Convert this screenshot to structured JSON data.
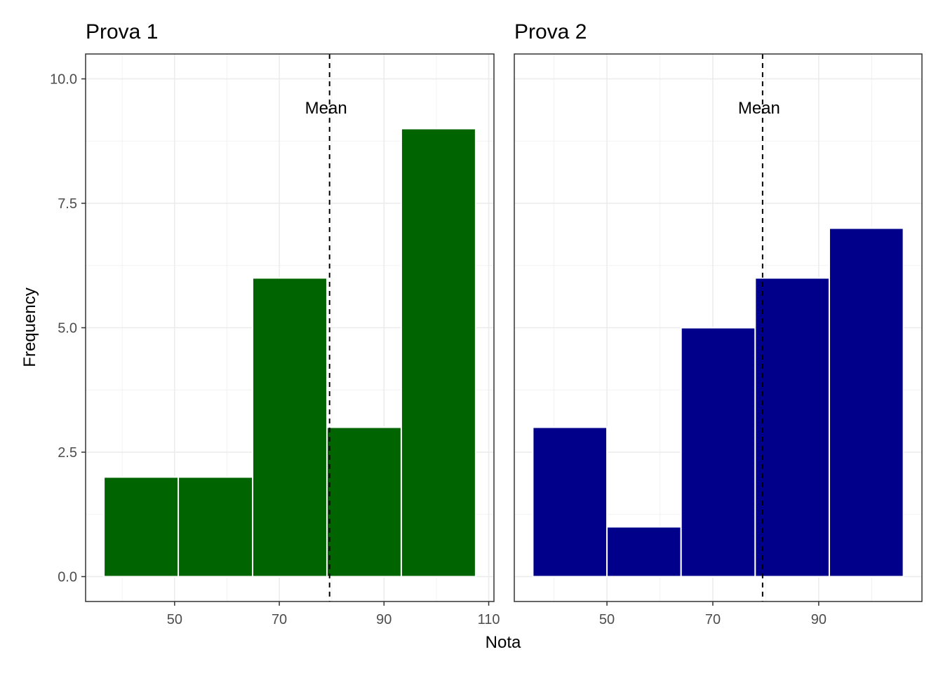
{
  "shared": {
    "xlabel": "Nota",
    "ylabel": "Frequency",
    "ylim": [
      -0.5,
      10.5
    ],
    "yticks": [
      0.0,
      2.5,
      5.0,
      7.5,
      10.0
    ],
    "ytick_labels": [
      "0.0",
      "2.5",
      "5.0",
      "7.5",
      "10.0"
    ],
    "grid": true,
    "mean_label": "Mean"
  },
  "chart_data": [
    {
      "type": "bar",
      "title": "Prova 1",
      "color": "#006400",
      "xlim": [
        33,
        111
      ],
      "xticks": [
        50,
        70,
        90,
        110
      ],
      "xtick_labels": [
        "50",
        "70",
        "90",
        "110"
      ],
      "bins": [
        {
          "x0": 36.5,
          "x1": 50.7,
          "value": 2
        },
        {
          "x0": 50.7,
          "x1": 64.9,
          "value": 2
        },
        {
          "x0": 64.9,
          "x1": 79.1,
          "value": 6
        },
        {
          "x0": 79.1,
          "x1": 93.3,
          "value": 3
        },
        {
          "x0": 93.3,
          "x1": 107.5,
          "value": 9
        }
      ],
      "mean": 79.6
    },
    {
      "type": "bar",
      "title": "Prova 2",
      "color": "#00008B",
      "xlim": [
        32.5,
        109.5
      ],
      "xticks": [
        50,
        70,
        90
      ],
      "xtick_labels": [
        "50",
        "70",
        "90"
      ],
      "bins": [
        {
          "x0": 36,
          "x1": 50,
          "value": 3
        },
        {
          "x0": 50,
          "x1": 64,
          "value": 1
        },
        {
          "x0": 64,
          "x1": 78,
          "value": 5
        },
        {
          "x0": 78,
          "x1": 92,
          "value": 6
        },
        {
          "x0": 92,
          "x1": 106,
          "value": 7
        }
      ],
      "mean": 79.4
    }
  ]
}
